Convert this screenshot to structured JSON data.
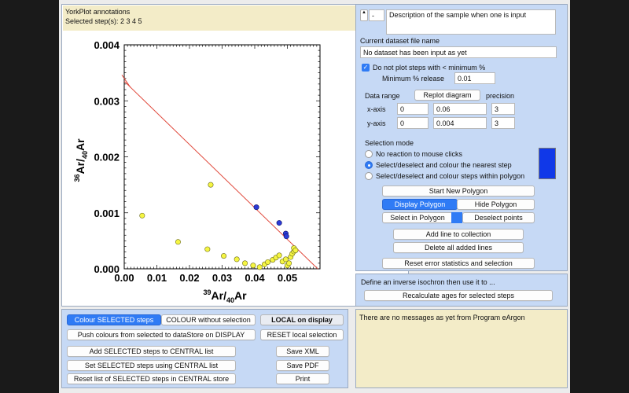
{
  "plot": {
    "annotations_title": "YorkPlot annotations",
    "selected_steps_label": "Selected step(s):",
    "selected_steps_value": "2 3 4 5",
    "chart_data": {
      "type": "scatter",
      "xlabel_base": "Ar/",
      "xlabel_sup": "39",
      "xlabel_sub": "40",
      "xlabel_tail": "Ar",
      "ylabel_sup": "36",
      "ylabel_base": "Ar/",
      "ylabel_sub": "40",
      "ylabel_tail": "Ar",
      "xlim": [
        0,
        0.06
      ],
      "ylim": [
        0,
        0.004
      ],
      "x_ticks": [
        "0.00",
        "0.01",
        "0.02",
        "0.03",
        "0.04",
        "0.05"
      ],
      "y_ticks": [
        "0.000",
        "0.001",
        "0.002",
        "0.003",
        "0.004"
      ],
      "isochron_line": {
        "x": [
          0.0,
          0.0593
        ],
        "y": [
          0.00335,
          0.0
        ]
      },
      "unselected_points": {
        "color": "#f5f542",
        "x": [
          0.0055,
          0.0165,
          0.0255,
          0.0265,
          0.0305,
          0.0345,
          0.037,
          0.0395,
          0.0415,
          0.043,
          0.044,
          0.0455,
          0.0465,
          0.0475,
          0.0485,
          0.0495,
          0.05,
          0.0505,
          0.051,
          0.0515,
          0.052,
          0.052,
          0.0525
        ],
        "y": [
          0.00095,
          0.00048,
          0.00035,
          0.0015,
          0.00023,
          0.00017,
          0.0001,
          6e-05,
          3e-05,
          8e-05,
          0.00012,
          0.00016,
          0.0002,
          0.00024,
          0.00013,
          0.00017,
          6e-05,
          0.0001,
          0.00021,
          0.00027,
          0.00031,
          0.00037,
          0.00033
        ]
      },
      "selected_points": {
        "color": "#2b3bd8",
        "x": [
          0.0405,
          0.0475,
          0.0495,
          0.0497
        ],
        "y": [
          0.0011,
          0.00082,
          0.00063,
          0.00058
        ]
      }
    }
  },
  "left_buttons": {
    "colour_selected": "Colour SELECTED steps",
    "colour_without": "COLOUR without selection",
    "local_on_display": "LOCAL on display",
    "push_colours": "Push colours from selected to dataStore on DISPLAY",
    "reset_local": "RESET local selection",
    "add_selected": "Add SELECTED steps to CENTRAL list",
    "set_selected": "Set SELECTED steps using CENTRAL list",
    "reset_list": "Reset list of SELECTED steps in CENTRAL store",
    "save_xml": "Save XML",
    "save_pdf": "Save PDF",
    "print": "Print"
  },
  "right": {
    "stepper_value": "-",
    "description": "Description of the sample when one is input",
    "dataset_label": "Current dataset file name",
    "dataset_value": "No dataset has been input as yet",
    "min_check_label": "Do not plot steps with < minimum %",
    "min_release_label": "Minimum % release",
    "min_release_value": "0.01",
    "data_range_label": "Data range",
    "replot_label": "Replot diagram",
    "precision_label": "precision",
    "xaxis_label": "x-axis",
    "x_min": "0",
    "x_max": "0.06",
    "x_precision": "3",
    "yaxis_label": "y-axis",
    "y_min": "0",
    "y_max": "0.004",
    "y_precision": "3",
    "selection_mode_label": "Selection mode",
    "mode_none": "No reaction to mouse clicks",
    "mode_nearest": "Select/deselect and colour the nearest step",
    "mode_polygon": "Select/deselect and colour steps within polygon",
    "swatch_color": "#1038e8",
    "start_polygon": "Start New Polygon",
    "display_polygon": "Display Polygon",
    "hide_polygon": "Hide Polygon",
    "select_in_polygon": "Select in Polygon",
    "deselect_points": "Deselect points",
    "add_line": "Add line to collection",
    "delete_lines": "Delete all added lines",
    "reset_error": "Reset error statistics and selection",
    "isochron_prompt": "Define an inverse isochron then use it to ...",
    "recalculate": "Recalculate ages for selected steps",
    "messages": "There are no messages as yet from Program eArgon"
  }
}
